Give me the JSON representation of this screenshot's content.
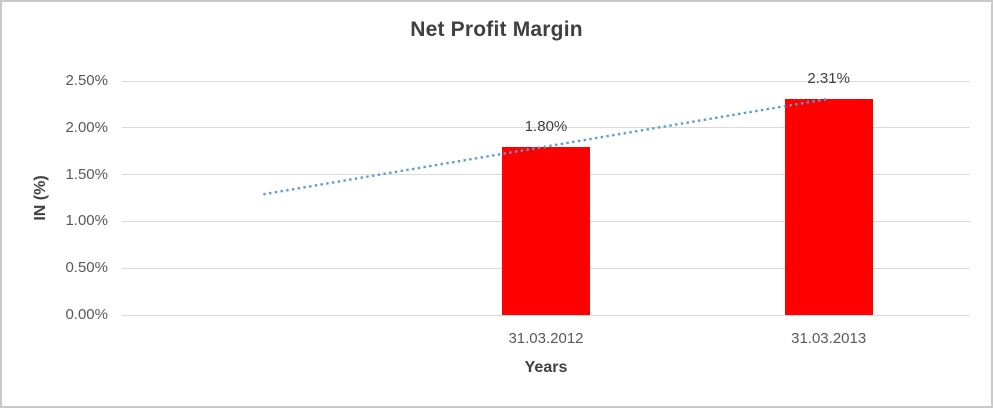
{
  "chart": {
    "title": "Net Profit Margin",
    "y_axis_title": "IN (%)",
    "x_axis_title": "Years"
  },
  "chart_data": {
    "type": "bar",
    "title": "Net Profit Margin",
    "xlabel": "Years",
    "ylabel": "IN (%)",
    "categories": [
      "31.03.2012",
      "31.03.2013"
    ],
    "values": [
      1.8,
      2.31
    ],
    "data_labels": [
      "1.80%",
      "2.31%"
    ],
    "ylim": [
      0,
      2.5
    ],
    "y_tick_step": 0.5,
    "y_tick_labels": [
      "0.00%",
      "0.50%",
      "1.00%",
      "1.50%",
      "2.00%",
      "2.50%"
    ],
    "grid": true,
    "legend": "none",
    "num_category_slots": 3,
    "bar_slots": [
      1,
      2
    ],
    "trendline": {
      "type": "linear",
      "style": "dotted",
      "start_slot": 0,
      "end_slot": 2,
      "start_value": 1.29,
      "end_value": 2.31
    },
    "colors": {
      "bar": "#FF0000",
      "trendline": "#5B9BD5",
      "gridline": "#D9D9D9",
      "title_text": "#404040",
      "tick_text": "#595959"
    }
  }
}
